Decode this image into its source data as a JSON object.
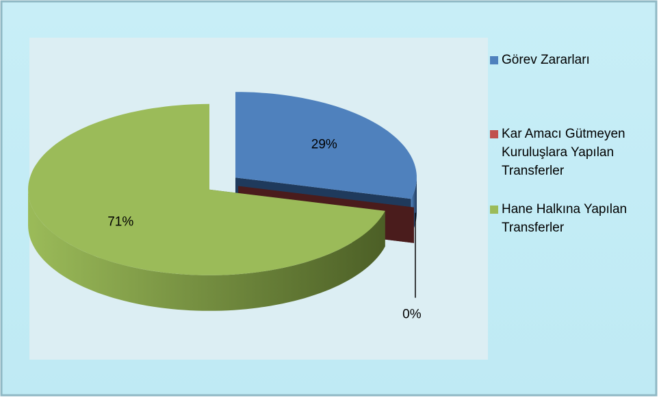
{
  "chart_data": {
    "type": "pie3d",
    "categories": [
      "Görev Zararları",
      "Kar Amacı Gütmeyen Kuruluşlara Yapılan Transferler",
      "Hane Halkına Yapılan Transferler"
    ],
    "values": [
      29,
      0,
      71
    ],
    "value_labels": [
      "29%",
      "0%",
      "71%"
    ],
    "colors": [
      "#4f81bd",
      "#c0504d",
      "#9bbb59"
    ],
    "wall_colors": [
      "#1f3a5c",
      "#4a1c1c",
      "#4c5f26"
    ],
    "legend": "right"
  }
}
